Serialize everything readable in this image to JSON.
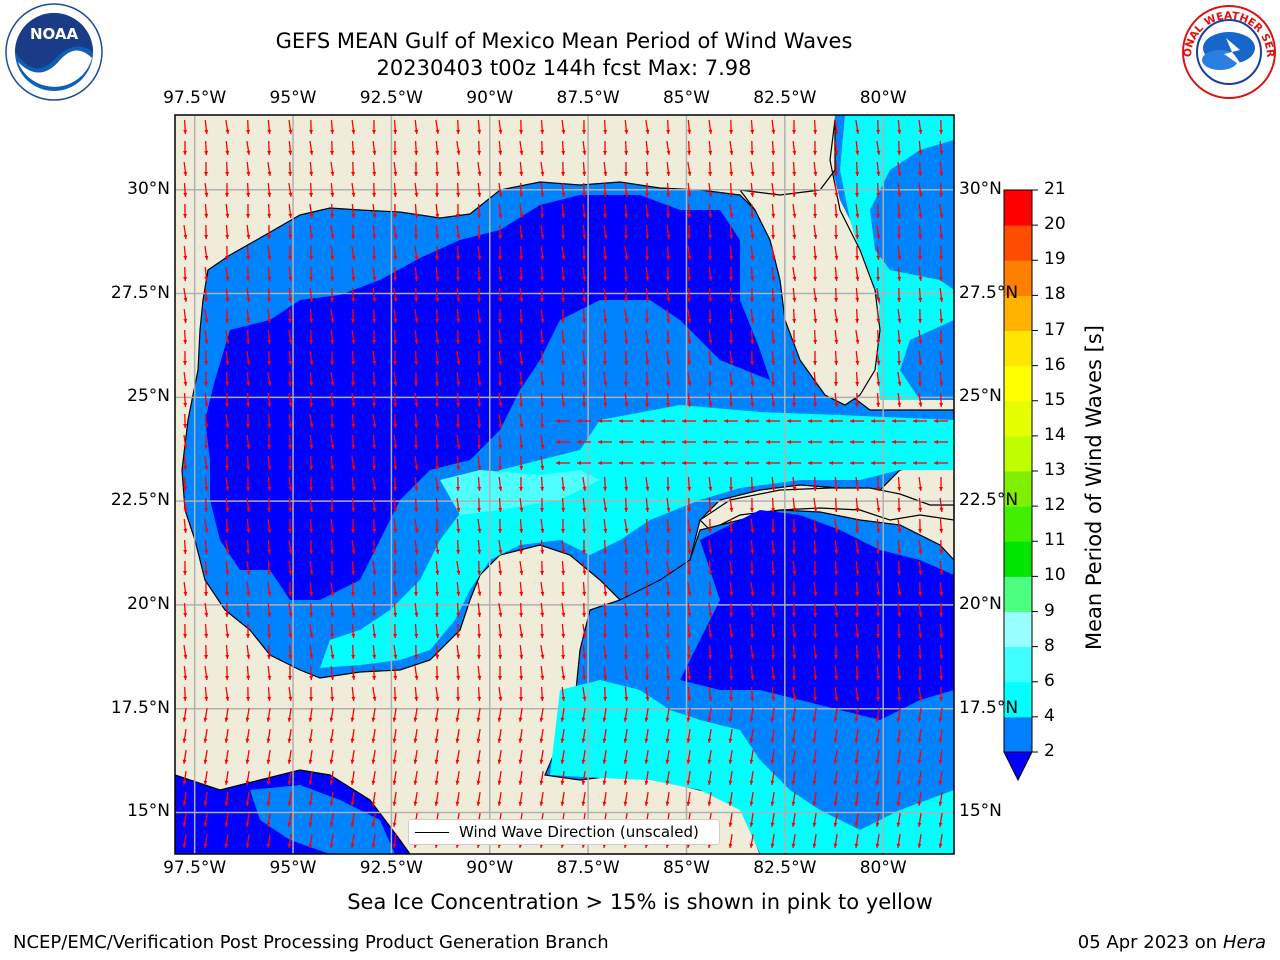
{
  "header": {
    "title_line1": "GEFS MEAN Gulf of Mexico Mean Period of Wind Waves",
    "title_line2": "20230403 t00z 144h fcst   Max: 7.98",
    "left_logo_text": "NOAA",
    "right_logo_text": "NATIONAL WEATHER SERVICE"
  },
  "map": {
    "lon_labels": [
      "97.5°W",
      "95°W",
      "92.5°W",
      "90°W",
      "87.5°W",
      "85°W",
      "82.5°W",
      "80°W"
    ],
    "lon_values": [
      -97.5,
      -95,
      -92.5,
      -90,
      -87.5,
      -85,
      -82.5,
      -80
    ],
    "lat_labels": [
      "30°N",
      "27.5°N",
      "25°N",
      "22.5°N",
      "20°N",
      "17.5°N",
      "15°N"
    ],
    "lat_values": [
      30,
      27.5,
      25,
      22.5,
      20,
      17.5,
      15
    ],
    "extent": {
      "lon_min": -98,
      "lon_max": -78.2,
      "lat_min": 14,
      "lat_max": 31.8
    },
    "legend_label": "Wind Wave Direction (unscaled)",
    "colors": {
      "land": "#efedda",
      "level_2": "#0000fe",
      "level_2_4": "#0083ff",
      "level_4_6": "#00ffff",
      "level_6_8": "#4dffff",
      "level_8_9": "#99fff9",
      "vector": "#ff0000"
    }
  },
  "colorbar": {
    "title": "Mean Period of Wind Waves [s]",
    "ticks": [
      "2",
      "4",
      "6",
      "8",
      "9",
      "10",
      "11",
      "12",
      "13",
      "14",
      "15",
      "16",
      "17",
      "18",
      "19",
      "20",
      "21"
    ],
    "colors": [
      "#0080ff",
      "#00ffff",
      "#40ffff",
      "#99ffff",
      "#4dff80",
      "#00e600",
      "#40f000",
      "#80f000",
      "#c0ff00",
      "#e6ff00",
      "#ffff00",
      "#ffe600",
      "#ffb300",
      "#ff8000",
      "#ff4d00",
      "#ff0000"
    ],
    "extend_color": "#0000ff"
  },
  "footer": {
    "caption": "Sea Ice Concentration > 15% is shown in pink to yellow",
    "credit": "NCEP/EMC/Verification Post Processing Product Generation Branch",
    "date": "05 Apr 2023 on ",
    "machine": "Hera"
  }
}
